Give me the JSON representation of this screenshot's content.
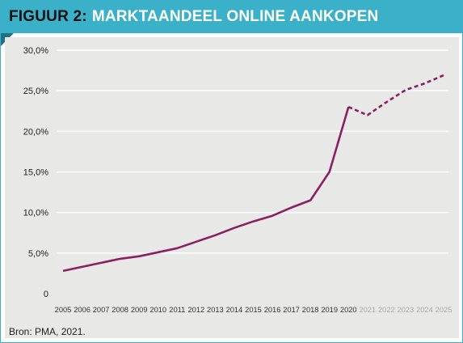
{
  "header": {
    "figure_label": "FIGUUR 2:",
    "title": "MARKTAANDEEL ONLINE AANKOPEN"
  },
  "source": "Bron: PMA, 2021.",
  "colors": {
    "header_bg": "#3bb0c9",
    "header_fold": "#1f6f85",
    "plot_bg": "#e8e8e7",
    "grid": "#ffffff",
    "line": "#8b1f63",
    "tick_actual": "#333333",
    "tick_forecast": "#a9a9ad"
  },
  "chart_data": {
    "type": "line",
    "title": "MARKTAANDEEL ONLINE AANKOPEN",
    "xlabel": "",
    "ylabel": "",
    "ylim": [
      0,
      30
    ],
    "y_ticks": [
      0,
      5,
      10,
      15,
      20,
      25,
      30
    ],
    "y_tick_labels": [
      "0",
      "5,0%",
      "10,0%",
      "15,0%",
      "20,0%",
      "25,0%",
      "30,0%"
    ],
    "x": [
      "2005",
      "2006",
      "2007",
      "2008",
      "2009",
      "2010",
      "2011",
      "2012",
      "2013",
      "2014",
      "2015",
      "2016",
      "2017",
      "2018",
      "2019",
      "2020",
      "2021",
      "2022",
      "2023",
      "2024",
      "2025"
    ],
    "grid": true,
    "legend": "none",
    "series": [
      {
        "style": "solid",
        "x": [
          "2005",
          "2006",
          "2007",
          "2008",
          "2009",
          "2010",
          "2011",
          "2012",
          "2013",
          "2014",
          "2015",
          "2016",
          "2017",
          "2018",
          "2019",
          "2020"
        ],
        "values": [
          2.8,
          3.3,
          3.8,
          4.3,
          4.6,
          5.1,
          5.6,
          6.4,
          7.2,
          8.1,
          8.9,
          9.6,
          10.6,
          11.5,
          15.0,
          23.0
        ]
      },
      {
        "style": "dashed",
        "x": [
          "2020",
          "2021",
          "2022",
          "2023",
          "2024",
          "2025"
        ],
        "values": [
          23.0,
          22.0,
          23.6,
          25.1,
          25.9,
          26.9
        ]
      }
    ],
    "forecast_from": "2021"
  }
}
